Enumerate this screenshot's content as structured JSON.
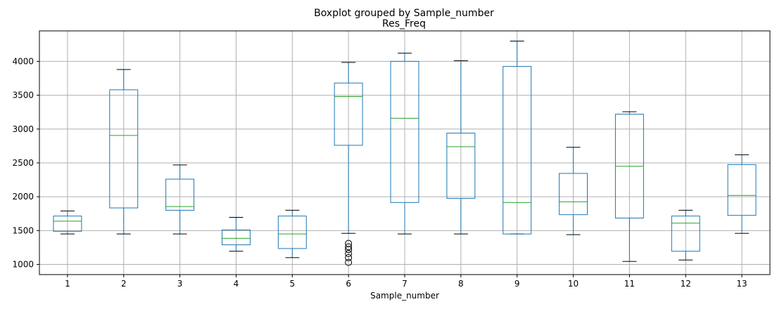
{
  "chart_data": {
    "type": "boxplot",
    "suptitle": "Boxplot grouped by Sample_number",
    "title": "Res_Freq",
    "xlabel": "Sample_number",
    "ylabel": "",
    "ylim": [
      850,
      4450
    ],
    "yticks": [
      1000,
      1500,
      2000,
      2500,
      3000,
      3500,
      4000
    ],
    "grid": true,
    "colors": {
      "box": "#1f77b4",
      "median": "#2ca02c",
      "whisker": "#1f77b4",
      "cap": "#000000",
      "grid": "#b0b0b0"
    },
    "categories": [
      "1",
      "2",
      "3",
      "4",
      "5",
      "6",
      "7",
      "8",
      "9",
      "10",
      "11",
      "12",
      "13"
    ],
    "boxes": [
      {
        "label": "1",
        "whislo": 1450,
        "q1": 1490,
        "med": 1640,
        "q3": 1715,
        "whishi": 1790,
        "fliers": []
      },
      {
        "label": "2",
        "whislo": 1450,
        "q1": 1835,
        "med": 2905,
        "q3": 3580,
        "whishi": 3880,
        "fliers": []
      },
      {
        "label": "3",
        "whislo": 1450,
        "q1": 1800,
        "med": 1855,
        "q3": 2260,
        "whishi": 2470,
        "fliers": []
      },
      {
        "label": "4",
        "whislo": 1195,
        "q1": 1290,
        "med": 1385,
        "q3": 1510,
        "whishi": 1695,
        "fliers": []
      },
      {
        "label": "5",
        "whislo": 1100,
        "q1": 1235,
        "med": 1450,
        "q3": 1715,
        "whishi": 1800,
        "fliers": []
      },
      {
        "label": "6",
        "whislo": 1460,
        "q1": 2760,
        "med": 3480,
        "q3": 3680,
        "whishi": 3985,
        "fliers": [
          1310,
          1260,
          1220,
          1160,
          1100,
          1030
        ]
      },
      {
        "label": "7",
        "whislo": 1450,
        "q1": 1915,
        "med": 3160,
        "q3": 4000,
        "whishi": 4120,
        "fliers": []
      },
      {
        "label": "8",
        "whislo": 1450,
        "q1": 1975,
        "med": 2740,
        "q3": 2940,
        "whishi": 4010,
        "fliers": []
      },
      {
        "label": "9",
        "whislo": 1450,
        "q1": 1450,
        "med": 1915,
        "q3": 3925,
        "whishi": 4300,
        "fliers": []
      },
      {
        "label": "10",
        "whislo": 1440,
        "q1": 1735,
        "med": 1925,
        "q3": 2345,
        "whishi": 2730,
        "fliers": []
      },
      {
        "label": "11",
        "whislo": 1045,
        "q1": 1685,
        "med": 2450,
        "q3": 3220,
        "whishi": 3255,
        "fliers": []
      },
      {
        "label": "12",
        "whislo": 1065,
        "q1": 1195,
        "med": 1610,
        "q3": 1715,
        "whishi": 1800,
        "fliers": []
      },
      {
        "label": "13",
        "whislo": 1460,
        "q1": 1725,
        "med": 2020,
        "q3": 2475,
        "whishi": 2620,
        "fliers": []
      }
    ]
  }
}
